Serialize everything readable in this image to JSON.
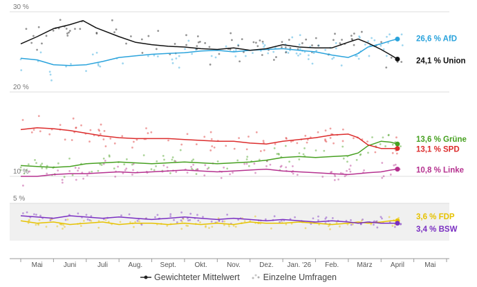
{
  "chart_data": {
    "type": "line",
    "unit": "%",
    "x_tick_labels": [
      "Mai",
      "Juni",
      "Juli",
      "Aug.",
      "Sept.",
      "Okt.",
      "Nov.",
      "Dez.",
      "Jan. '26",
      "Feb.",
      "März",
      "April",
      "Mai"
    ],
    "y_tick_labels": [
      "30 %",
      "20 %",
      "10 %",
      "5 %"
    ],
    "y_ticks": [
      30,
      20,
      10,
      5
    ],
    "panels": [
      {
        "id": "top",
        "ylim": [
          20,
          30
        ],
        "background": "#ffffff"
      },
      {
        "id": "middle",
        "ylim": [
          10,
          17
        ],
        "background": "#ffffff"
      },
      {
        "id": "bottom",
        "ylim": [
          2,
          5
        ],
        "background": "#f0f0f0"
      }
    ],
    "x_range_months": [
      0,
      13
    ],
    "series": [
      {
        "name": "AfD",
        "panel": "top",
        "color": "#2aa3dc",
        "label": "26,6 % AfD",
        "end_value": 26.6,
        "x": [
          0,
          0.5,
          1,
          1.5,
          2,
          2.5,
          3,
          3.5,
          4,
          4.5,
          5,
          5.5,
          6,
          6.5,
          7,
          7.5,
          8,
          8.5,
          9,
          9.5,
          10,
          10.3,
          10.6,
          11,
          11.3,
          11.5
        ],
        "values": [
          24.2,
          24.0,
          23.4,
          23.3,
          23.4,
          23.8,
          24.3,
          24.5,
          24.7,
          24.8,
          24.9,
          25.1,
          25.2,
          25.0,
          25.2,
          25.3,
          25.4,
          25.2,
          25.0,
          24.6,
          24.3,
          24.8,
          25.6,
          26.0,
          26.4,
          26.6
        ]
      },
      {
        "name": "Union",
        "panel": "top",
        "color": "#111111",
        "label": "24,1 % Union",
        "end_value": 24.1,
        "x": [
          0,
          0.5,
          1,
          1.5,
          1.9,
          2.3,
          3,
          3.5,
          4,
          4.5,
          5,
          5.5,
          6,
          6.5,
          7,
          7.5,
          8,
          8.5,
          9,
          9.5,
          10,
          10.3,
          10.6,
          11,
          11.3,
          11.5
        ],
        "values": [
          26.0,
          26.9,
          27.9,
          28.4,
          28.9,
          28.0,
          26.9,
          26.2,
          25.9,
          25.7,
          25.6,
          25.4,
          25.3,
          25.5,
          25.2,
          25.4,
          25.9,
          25.6,
          25.5,
          25.5,
          26.2,
          26.6,
          26.1,
          25.3,
          24.6,
          24.1
        ]
      },
      {
        "name": "Grüne",
        "panel": "middle",
        "color": "#46a020",
        "label": "13,6 % Grüne",
        "end_value": 13.6,
        "x": [
          0,
          0.5,
          1,
          1.5,
          2,
          2.5,
          3,
          3.5,
          4,
          4.5,
          5,
          5.5,
          6,
          6.5,
          7,
          7.5,
          8,
          8.5,
          9,
          9.5,
          10,
          10.3,
          10.6,
          11,
          11.3,
          11.5
        ],
        "values": [
          11.2,
          11.1,
          11.0,
          11.1,
          11.4,
          11.5,
          11.6,
          11.5,
          11.4,
          11.5,
          11.6,
          11.5,
          11.4,
          11.5,
          11.6,
          11.8,
          12.1,
          12.2,
          12.1,
          12.2,
          12.3,
          12.6,
          13.4,
          13.9,
          13.8,
          13.6
        ]
      },
      {
        "name": "SPD",
        "panel": "middle",
        "color": "#dc2c2c",
        "label": "13,1 % SPD",
        "end_value": 13.1,
        "x": [
          0,
          0.5,
          1,
          1.5,
          2,
          2.5,
          3,
          3.5,
          4,
          4.5,
          5,
          5.5,
          6,
          6.5,
          7,
          7.5,
          8,
          8.5,
          9,
          9.5,
          10,
          10.3,
          10.6,
          11,
          11.3,
          11.5
        ],
        "values": [
          15.2,
          15.4,
          15.3,
          15.1,
          14.8,
          14.5,
          14.3,
          14.2,
          14.2,
          14.2,
          14.1,
          14.0,
          13.9,
          13.9,
          13.7,
          13.6,
          13.9,
          14.1,
          14.3,
          14.6,
          14.7,
          14.3,
          13.5,
          13.1,
          13.1,
          13.1
        ]
      },
      {
        "name": "Linke",
        "panel": "middle",
        "color": "#b5318f",
        "label": "10,8 % Linke",
        "end_value": 10.8,
        "x": [
          0,
          0.5,
          1,
          1.5,
          2,
          2.5,
          3,
          3.5,
          4,
          4.5,
          5,
          5.5,
          6,
          6.5,
          7,
          7.5,
          8,
          8.5,
          9,
          9.5,
          10,
          10.3,
          10.6,
          11,
          11.3,
          11.5
        ],
        "values": [
          10.0,
          10.0,
          10.2,
          10.3,
          10.3,
          10.4,
          10.5,
          10.4,
          10.5,
          10.6,
          10.7,
          10.6,
          10.5,
          10.6,
          10.7,
          10.8,
          10.6,
          10.5,
          10.4,
          10.3,
          10.2,
          10.3,
          10.4,
          10.5,
          10.7,
          10.8
        ]
      },
      {
        "name": "FDP",
        "panel": "bottom",
        "color": "#e6c200",
        "label": "3,6 % FDP",
        "end_value": 3.6,
        "x": [
          0,
          0.5,
          1,
          1.5,
          2,
          2.5,
          3,
          3.5,
          4,
          4.5,
          5,
          5.5,
          6,
          6.5,
          7,
          7.5,
          8,
          8.5,
          9,
          9.5,
          10,
          10.3,
          10.6,
          11,
          11.3,
          11.5
        ],
        "values": [
          3.6,
          3.4,
          3.5,
          3.3,
          3.4,
          3.5,
          3.3,
          3.4,
          3.4,
          3.3,
          3.4,
          3.3,
          3.4,
          3.3,
          3.5,
          3.4,
          3.4,
          3.5,
          3.4,
          3.3,
          3.4,
          3.5,
          3.4,
          3.5,
          3.6,
          3.6
        ]
      },
      {
        "name": "BSW",
        "panel": "bottom",
        "color": "#7a2fc2",
        "label": "3,4 % BSW",
        "end_value": 3.4,
        "x": [
          0,
          0.5,
          1,
          1.5,
          2,
          2.5,
          3,
          3.5,
          4,
          4.5,
          5,
          5.5,
          6,
          6.5,
          7,
          7.5,
          8,
          8.5,
          9,
          9.5,
          10,
          10.3,
          10.6,
          11,
          11.3,
          11.5
        ],
        "values": [
          4.0,
          3.9,
          3.8,
          4.0,
          3.9,
          3.8,
          3.9,
          3.8,
          3.7,
          3.8,
          3.9,
          3.8,
          3.7,
          3.8,
          3.7,
          3.6,
          3.7,
          3.6,
          3.5,
          3.6,
          3.5,
          3.4,
          3.5,
          3.4,
          3.4,
          3.4
        ]
      }
    ],
    "individual_polls_shown": true,
    "legend_position": "bottom-center"
  },
  "legend": {
    "weighted_mean": "Gewichteter Mittelwert",
    "individual_polls": "Einzelne Umfragen"
  }
}
